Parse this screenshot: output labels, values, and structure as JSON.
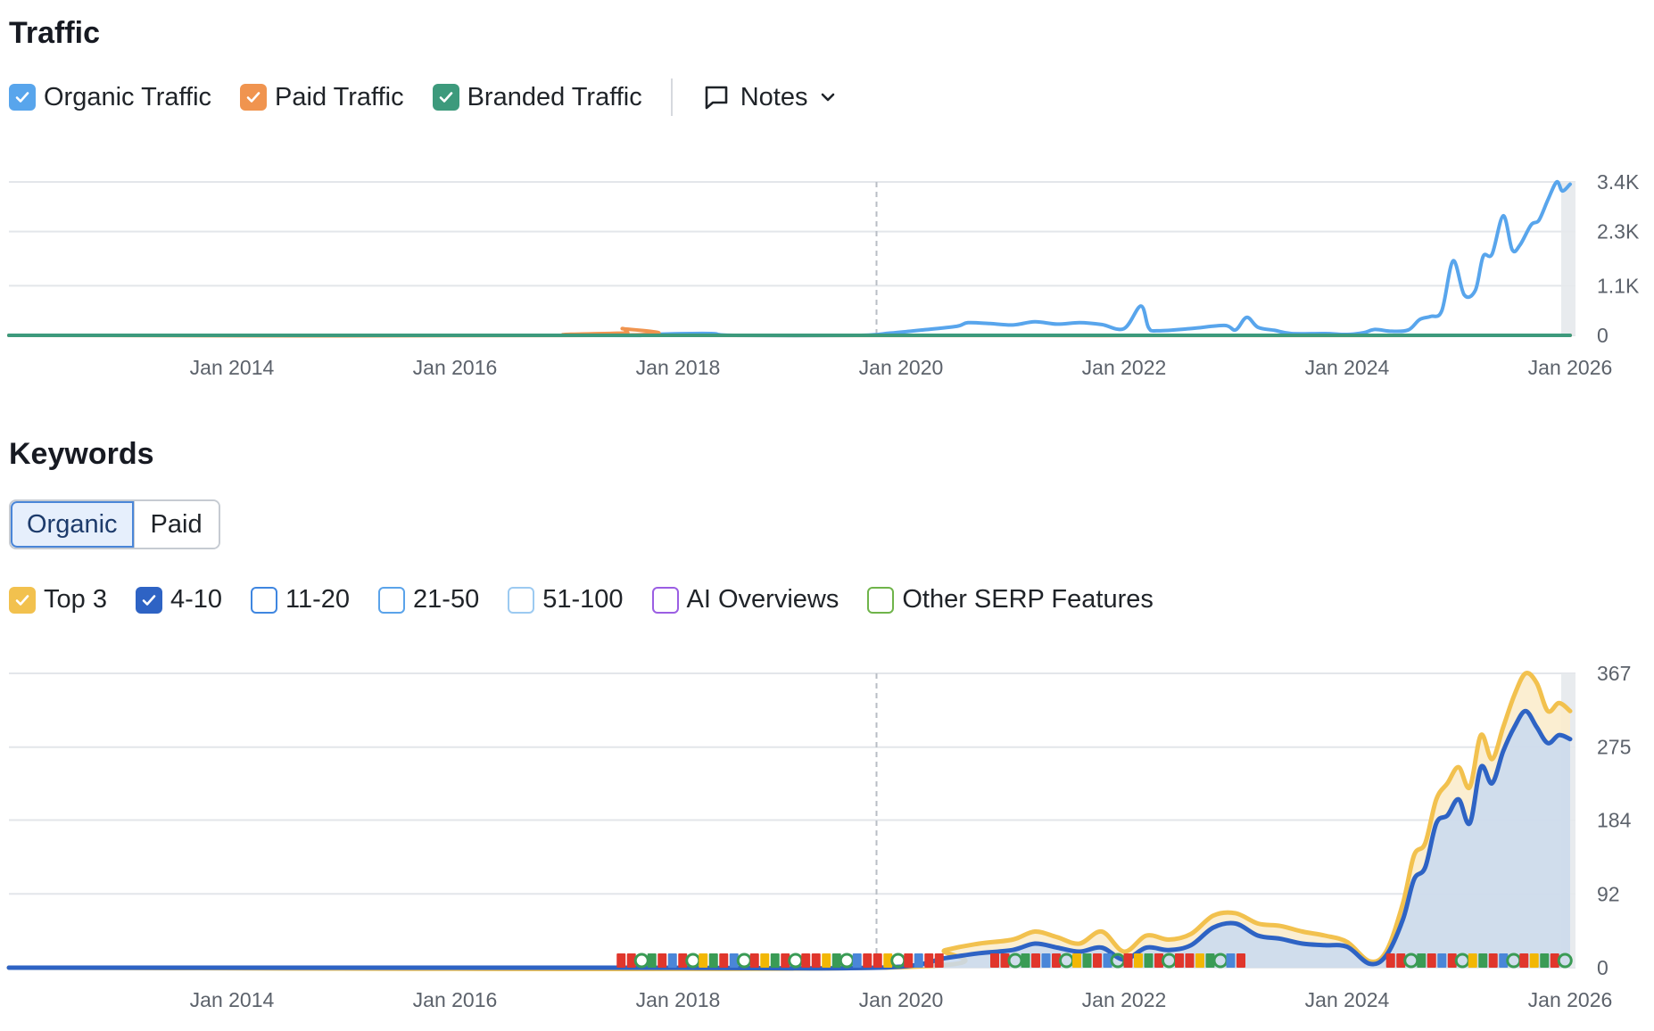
{
  "traffic": {
    "title": "Traffic",
    "legend": [
      {
        "label": "Organic Traffic",
        "color": "#58a5ec",
        "checked": true
      },
      {
        "label": "Paid Traffic",
        "color": "#f0944f",
        "checked": true
      },
      {
        "label": "Branded Traffic",
        "color": "#3d9a7c",
        "checked": true
      }
    ],
    "notes_label": "Notes"
  },
  "keywords": {
    "title": "Keywords",
    "tabs": [
      {
        "label": "Organic",
        "active": true
      },
      {
        "label": "Paid",
        "active": false
      }
    ],
    "legend": [
      {
        "label": "Top 3",
        "color": "#f2c14e",
        "checked": true
      },
      {
        "label": "4-10",
        "color": "#2e63c4",
        "checked": true
      },
      {
        "label": "11-20",
        "color": "#3f86e0",
        "checked": false
      },
      {
        "label": "21-50",
        "color": "#5aa3ea",
        "checked": false
      },
      {
        "label": "51-100",
        "color": "#9ccaf1",
        "checked": false
      },
      {
        "label": "AI Overviews",
        "color": "#9b5ee3",
        "checked": false
      },
      {
        "label": "Other SERP Features",
        "color": "#6fb44a",
        "checked": false
      }
    ]
  },
  "chart_data": [
    {
      "type": "line",
      "title": "Traffic",
      "x_ticks": [
        "Jan 2014",
        "Jan 2016",
        "Jan 2018",
        "Jan 2020",
        "Jan 2022",
        "Jan 2024",
        "Jan 2026"
      ],
      "y_ticks": [
        "0",
        "1.1K",
        "2.3K",
        "3.4K"
      ],
      "ylim": [
        0,
        3400
      ],
      "xlim": [
        2012.0,
        2026.0
      ],
      "grid": true,
      "series": [
        {
          "name": "Organic Traffic",
          "color": "#58a5ec",
          "x": [
            2012.0,
            2017.2,
            2017.5,
            2017.9,
            2018.3,
            2018.5,
            2019.6,
            2019.9,
            2020.2,
            2020.5,
            2020.6,
            2020.8,
            2021.0,
            2021.2,
            2021.4,
            2021.6,
            2021.8,
            2022.0,
            2022.15,
            2022.22,
            2022.3,
            2022.6,
            2022.9,
            2023.0,
            2023.1,
            2023.2,
            2023.35,
            2023.5,
            2023.8,
            2024.0,
            2024.15,
            2024.25,
            2024.4,
            2024.55,
            2024.65,
            2024.75,
            2024.85,
            2024.95,
            2025.05,
            2025.15,
            2025.22,
            2025.3,
            2025.4,
            2025.48,
            2025.55,
            2025.65,
            2025.72,
            2025.8,
            2025.88,
            2025.93,
            2026.0
          ],
          "y": [
            0,
            0,
            0,
            30,
            40,
            0,
            0,
            50,
            120,
            200,
            280,
            260,
            230,
            300,
            250,
            280,
            240,
            150,
            650,
            170,
            100,
            150,
            220,
            120,
            400,
            180,
            110,
            40,
            40,
            20,
            60,
            130,
            90,
            120,
            350,
            420,
            550,
            1650,
            900,
            1000,
            1750,
            1800,
            2650,
            1900,
            2000,
            2450,
            2550,
            3000,
            3400,
            3200,
            3350
          ]
        },
        {
          "name": "Paid Traffic",
          "color": "#f0944f",
          "x": [
            2012.0,
            2017.4,
            2017.5,
            2017.55,
            2017.6,
            2026.0
          ],
          "y": [
            0,
            0,
            150,
            60,
            0,
            0
          ]
        },
        {
          "name": "Branded Traffic",
          "color": "#3d9a7c",
          "x": [
            2012.0,
            2026.0
          ],
          "y": [
            0,
            0
          ]
        }
      ]
    },
    {
      "type": "area",
      "title": "Keywords",
      "x_ticks": [
        "Jan 2014",
        "Jan 2016",
        "Jan 2018",
        "Jan 2020",
        "Jan 2022",
        "Jan 2024",
        "Jan 2026"
      ],
      "y_ticks": [
        "0",
        "92",
        "184",
        "275",
        "367"
      ],
      "ylim": [
        0,
        367
      ],
      "xlim": [
        2012.0,
        2026.0
      ],
      "grid": true,
      "series": [
        {
          "name": "Top 3",
          "color": "#f2c14e",
          "x": [
            2012.0,
            2019.8,
            2020.4,
            2020.7,
            2021.0,
            2021.2,
            2021.4,
            2021.6,
            2021.8,
            2022.0,
            2022.2,
            2022.4,
            2022.6,
            2022.8,
            2023.0,
            2023.2,
            2023.4,
            2023.6,
            2023.8,
            2024.0,
            2024.2,
            2024.35,
            2024.5,
            2024.6,
            2024.7,
            2024.8,
            2024.9,
            2025.0,
            2025.1,
            2025.2,
            2025.3,
            2025.4,
            2025.5,
            2025.6,
            2025.7,
            2025.8,
            2025.9,
            2026.0
          ],
          "y": [
            0,
            0,
            22,
            30,
            35,
            45,
            38,
            30,
            45,
            20,
            40,
            35,
            42,
            65,
            68,
            55,
            52,
            45,
            40,
            32,
            8,
            20,
            80,
            140,
            155,
            210,
            230,
            250,
            225,
            290,
            260,
            300,
            340,
            367,
            355,
            320,
            330,
            320
          ]
        },
        {
          "name": "4-10",
          "color": "#2e63c4",
          "x": [
            2012.0,
            2017.45,
            2019.8,
            2020.4,
            2020.7,
            2021.0,
            2021.2,
            2021.4,
            2021.6,
            2021.8,
            2022.0,
            2022.2,
            2022.4,
            2022.6,
            2022.8,
            2023.0,
            2023.2,
            2023.4,
            2023.6,
            2023.8,
            2024.0,
            2024.2,
            2024.35,
            2024.5,
            2024.6,
            2024.7,
            2024.8,
            2024.9,
            2025.0,
            2025.1,
            2025.2,
            2025.3,
            2025.4,
            2025.5,
            2025.6,
            2025.7,
            2025.8,
            2025.9,
            2026.0
          ],
          "y": [
            0,
            0,
            0,
            12,
            18,
            22,
            30,
            25,
            20,
            25,
            10,
            25,
            22,
            28,
            50,
            55,
            40,
            36,
            30,
            28,
            26,
            5,
            15,
            60,
            110,
            125,
            180,
            190,
            210,
            180,
            250,
            230,
            270,
            300,
            320,
            300,
            280,
            290,
            285
          ]
        }
      ],
      "serp_feature_markers": {
        "ranges": [
          [
            2017.45,
            2020.4
          ],
          [
            2020.8,
            2023.05
          ],
          [
            2024.35,
            2026.0
          ]
        ]
      }
    }
  ]
}
